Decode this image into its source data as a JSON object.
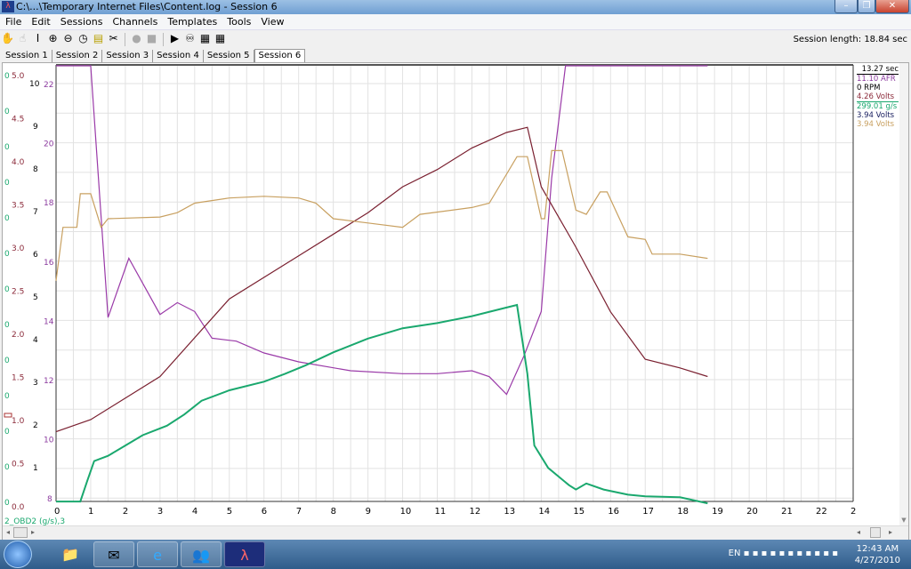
{
  "window": {
    "title": "C:\\...\\Temporary Internet Files\\Content.log - Session 6",
    "minimize": "–",
    "restore": "❐",
    "close": "✕"
  },
  "menu": [
    "File",
    "Edit",
    "Sessions",
    "Channels",
    "Templates",
    "Tools",
    "View"
  ],
  "toolbar": {
    "icons": [
      "hand-icon",
      "hand-disabled-icon",
      "text-cursor-icon",
      "zoom-in-icon",
      "zoom-out-icon",
      "zoom-reset-icon",
      "notes-icon",
      "scope-icon",
      "record-icon",
      "stop-icon",
      "play-icon",
      "binoculars-icon",
      "chart-icon",
      "table-icon"
    ],
    "glyphs": [
      "✋",
      "☝",
      "I",
      "⊕",
      "⊖",
      "◷",
      "▤",
      "✂",
      "●",
      "■",
      "▶",
      "♾",
      "▦",
      "▦"
    ]
  },
  "session_length": "Session length:  18.84 sec",
  "tabs": [
    "Session 1",
    "Session 2",
    "Session 3",
    "Session 4",
    "Session 5",
    "Session 6"
  ],
  "active_tab": "Session 6",
  "readout": {
    "time": "13.27 sec",
    "items": [
      {
        "text": "11.10 AFR",
        "color": "#8b3a9e"
      },
      {
        "text": "0 RPM",
        "color": "#000000"
      },
      {
        "text": "4.26 Volts",
        "color": "#8b2a3a"
      },
      {
        "text": "299.01 g/s",
        "color": "#1aa86e"
      },
      {
        "text": "3.94 Volts",
        "color": "#1a2060"
      },
      {
        "text": "3.94 Volts",
        "color": "#c8a060"
      }
    ]
  },
  "taskbar": {
    "apps": [
      "explorer-icon",
      "outlook-icon",
      "internet-explorer-icon",
      "messenger-icon",
      "datalog-3.0-icon"
    ],
    "lang": "EN",
    "time": "12:43 AM",
    "date": "4/27/2010"
  },
  "chart_data": {
    "type": "line",
    "x_axis": {
      "range": [
        0,
        23
      ],
      "ticks": [
        "0",
        "1",
        "2",
        "3",
        "4",
        "5",
        "6",
        "7",
        "8",
        "9",
        "10",
        "11",
        "12",
        "13",
        "14",
        "15",
        "16",
        "17",
        "18",
        "19",
        "20",
        "21",
        "22",
        "2"
      ]
    },
    "y_axes": [
      {
        "id": "g",
        "color": "#1aa86e",
        "ticks": [
          "0",
          "0",
          "0",
          "0",
          "0",
          "0",
          "0",
          "0",
          "0",
          "0",
          "0",
          "0",
          "0"
        ],
        "label": "2_OBD2 (g/s),3"
      },
      {
        "id": "volts",
        "color": "#8b2a3a",
        "range": [
          0,
          5
        ],
        "ticks": [
          "0.0",
          "0.5",
          "1.0",
          "1.5",
          "2.0",
          "2.5",
          "3.0",
          "3.5",
          "4.0",
          "4.5",
          "5.0"
        ]
      },
      {
        "id": "rpm",
        "color": "#000000",
        "range": [
          0,
          10
        ],
        "ticks": [
          "1",
          "2",
          "3",
          "4",
          "5",
          "6",
          "7",
          "8",
          "9",
          "10"
        ]
      },
      {
        "id": "afr",
        "color": "#8b3a9e",
        "range": [
          7.5,
          22.6
        ],
        "ticks": [
          "8",
          "10",
          "12",
          "14",
          "16",
          "18",
          "20",
          "22"
        ]
      }
    ],
    "grid": true,
    "cursor_time": 13.27,
    "series": [
      {
        "axis": "afr",
        "color": "#9a3aa8",
        "x": [
          0,
          1,
          1.5,
          2.1,
          3,
          3.5,
          4,
          4.5,
          5.2,
          6,
          7,
          8.5,
          10,
          11,
          12,
          12.5,
          13,
          13.5,
          14,
          14.3,
          14.7,
          18.8
        ],
        "y": [
          22.6,
          22.6,
          14.1,
          16.1,
          14.2,
          14.6,
          14.3,
          13.4,
          13.3,
          12.9,
          12.6,
          12.3,
          12.2,
          12.2,
          12.3,
          12.1,
          11.5,
          12.8,
          14.3,
          18.8,
          22.6,
          22.6
        ]
      },
      {
        "axis": "volts",
        "color": "#7a2030",
        "x": [
          0,
          1,
          3,
          5,
          7,
          9,
          10,
          11,
          12,
          13,
          13.6,
          14,
          15,
          16,
          17,
          18,
          18.8
        ],
        "y": [
          0.86,
          1.0,
          1.5,
          2.4,
          2.9,
          3.4,
          3.7,
          3.9,
          4.15,
          4.33,
          4.39,
          3.7,
          3.0,
          2.25,
          1.7,
          1.6,
          1.5
        ]
      },
      {
        "axis": "volts",
        "color": "#c8a060",
        "x": [
          0,
          0.2,
          0.6,
          0.7,
          1,
          1.3,
          1.5,
          3,
          3.5,
          4,
          5,
          6,
          7,
          7.5,
          8,
          9,
          10,
          10.5,
          12,
          12.5,
          13.3,
          13.6,
          14,
          14.1,
          14.3,
          14.6,
          15,
          15.3,
          15.7,
          15.9,
          16.5,
          17,
          17.2,
          18,
          18.8
        ],
        "y": [
          2.61,
          3.23,
          3.23,
          3.62,
          3.62,
          3.23,
          3.33,
          3.35,
          3.4,
          3.51,
          3.57,
          3.59,
          3.57,
          3.51,
          3.33,
          3.28,
          3.23,
          3.38,
          3.46,
          3.51,
          4.05,
          4.05,
          3.33,
          3.33,
          4.12,
          4.12,
          3.43,
          3.38,
          3.64,
          3.64,
          3.12,
          3.09,
          2.92,
          2.92,
          2.87
        ]
      },
      {
        "axis": "volts",
        "color": "#1aa86e",
        "x": [
          0,
          0.7,
          0.9,
          1.1,
          1.5,
          2,
          2.5,
          3.2,
          3.7,
          4.2,
          5,
          6,
          6.6,
          7.2,
          8,
          9,
          10,
          11,
          12,
          13,
          13.3,
          13.6,
          13.8,
          14.2,
          14.8,
          15,
          15.3,
          15.8,
          16.5,
          17,
          18,
          18.8
        ],
        "y": [
          0.05,
          0.05,
          0.29,
          0.52,
          0.58,
          0.7,
          0.82,
          0.93,
          1.06,
          1.22,
          1.34,
          1.44,
          1.53,
          1.63,
          1.78,
          1.94,
          2.06,
          2.12,
          2.2,
          2.3,
          2.33,
          1.53,
          0.7,
          0.44,
          0.24,
          0.19,
          0.26,
          0.19,
          0.13,
          0.11,
          0.1,
          0.03
        ]
      }
    ]
  }
}
